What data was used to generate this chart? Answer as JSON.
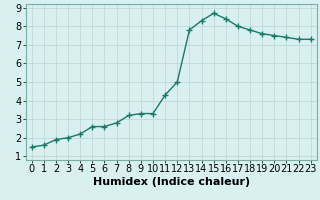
{
  "x": [
    0,
    1,
    2,
    3,
    4,
    5,
    6,
    7,
    8,
    9,
    10,
    11,
    12,
    13,
    14,
    15,
    16,
    17,
    18,
    19,
    20,
    21,
    22,
    23
  ],
  "y": [
    1.5,
    1.6,
    1.9,
    2.0,
    2.2,
    2.6,
    2.6,
    2.8,
    3.2,
    3.3,
    3.3,
    4.3,
    5.0,
    7.8,
    8.3,
    8.7,
    8.4,
    8.0,
    7.8,
    7.6,
    7.5,
    7.4,
    7.3,
    7.3
  ],
  "line_color": "#1a7a6a",
  "marker": "+",
  "marker_color": "#1a7a6a",
  "bg_color": "#d8f0f0",
  "grid_color": "#c0d8d8",
  "xlabel": "Humidex (Indice chaleur)",
  "ylabel": "",
  "xlim": [
    -0.5,
    23.5
  ],
  "ylim": [
    0.8,
    9.2
  ],
  "yticks": [
    1,
    2,
    3,
    4,
    5,
    6,
    7,
    8,
    9
  ],
  "xticks": [
    0,
    1,
    2,
    3,
    4,
    5,
    6,
    7,
    8,
    9,
    10,
    11,
    12,
    13,
    14,
    15,
    16,
    17,
    18,
    19,
    20,
    21,
    22,
    23
  ],
  "font_size": 7,
  "xlabel_fontsize": 8,
  "linewidth": 1.0,
  "markersize": 4
}
